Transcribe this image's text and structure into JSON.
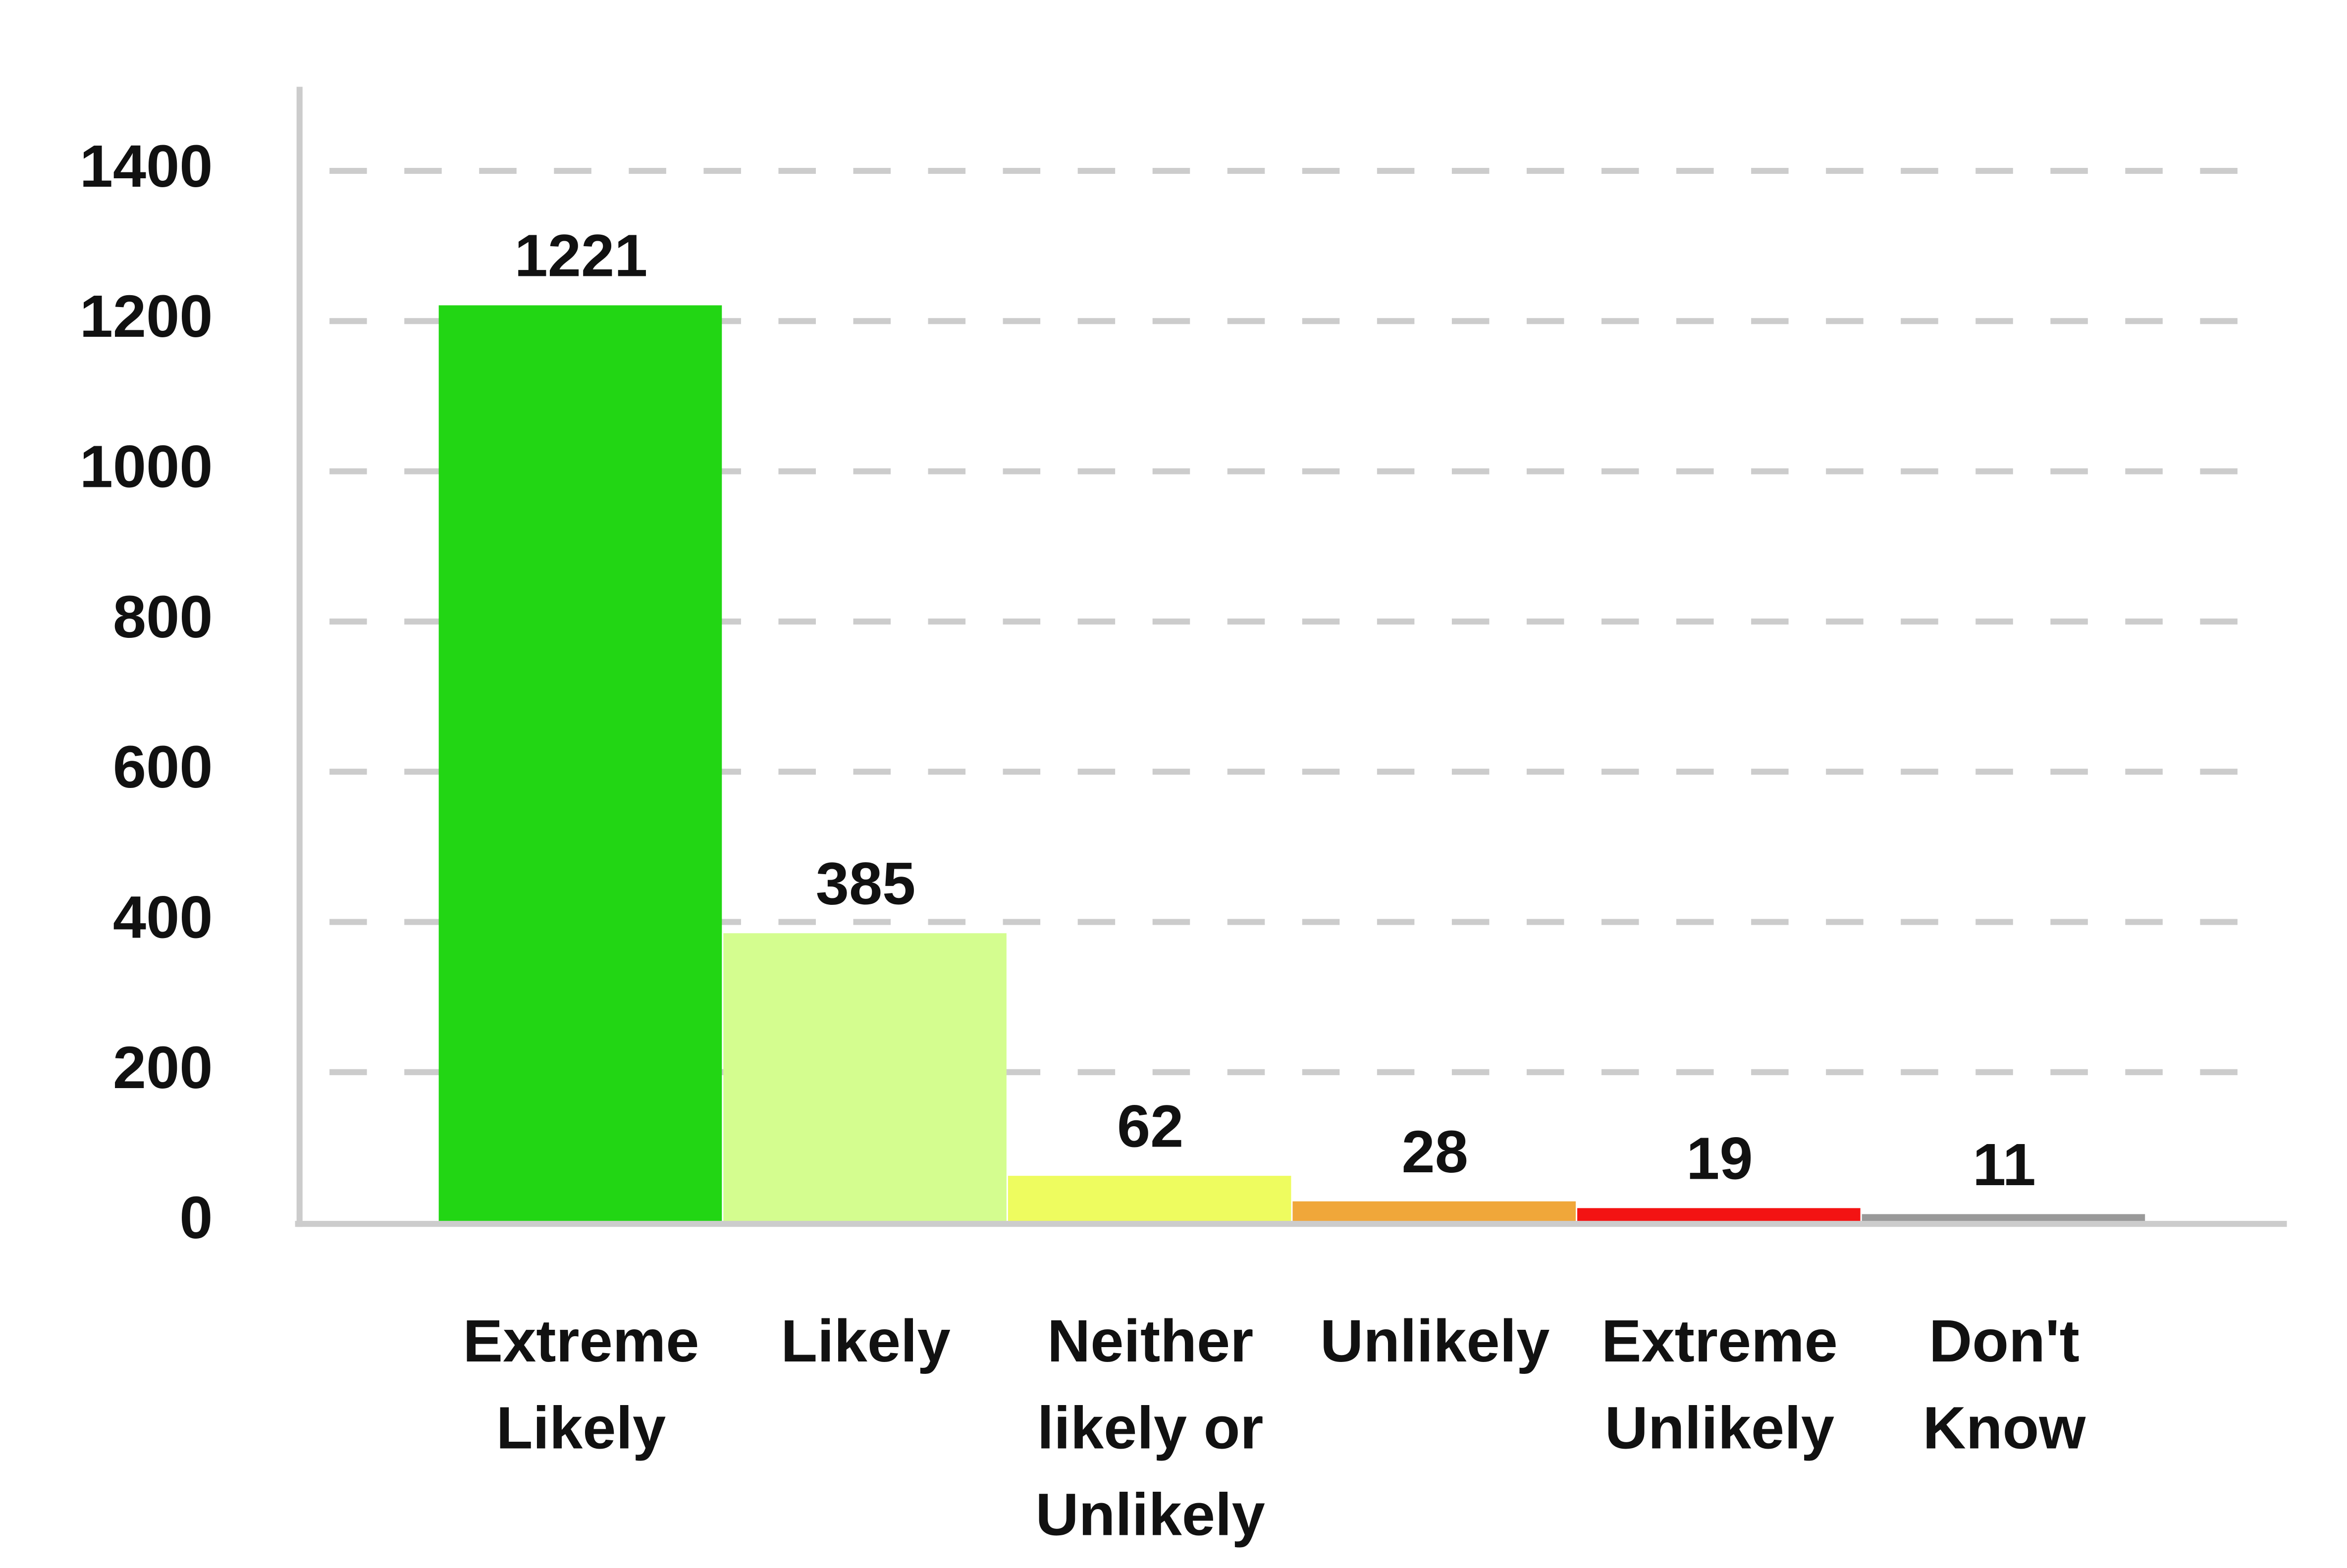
{
  "chart_data": {
    "type": "bar",
    "categories": [
      "Extreme Likely",
      "Likely",
      "Neither likely or Unlikely",
      "Unlikely",
      "Extreme Unlikely",
      "Don't Know"
    ],
    "values": [
      1221,
      385,
      62,
      28,
      19,
      11
    ],
    "colors": [
      "#22d614",
      "#d4fd8f",
      "#eefc5f",
      "#f0a73a",
      "#f31313",
      "#999999"
    ],
    "ylim": [
      0,
      1500
    ],
    "yticks": [
      0,
      200,
      400,
      600,
      800,
      1000,
      1200,
      1400
    ],
    "grid": true
  }
}
